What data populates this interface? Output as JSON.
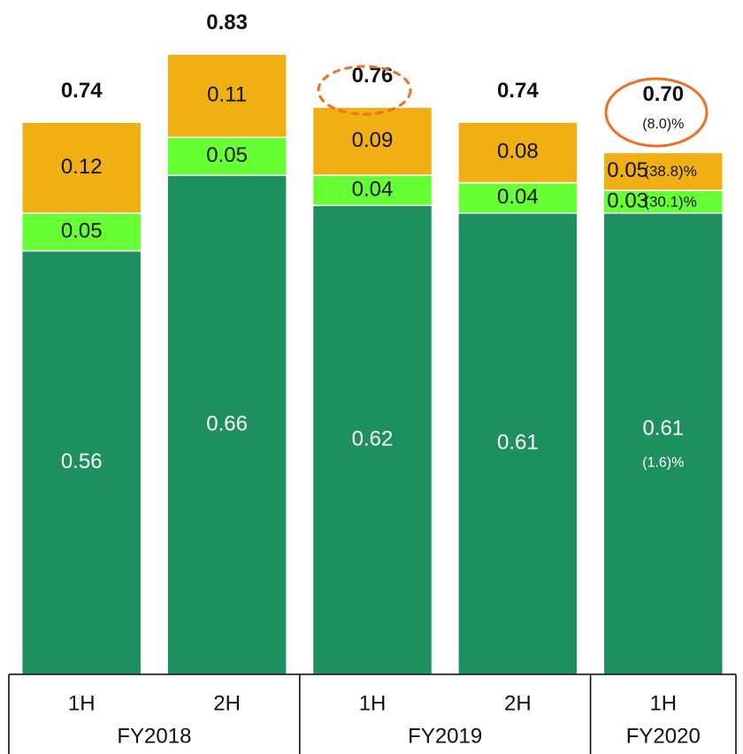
{
  "chart_data": {
    "type": "stacked_bar",
    "groups": [
      {
        "name": "FY2018",
        "categories": [
          "1H",
          "2H"
        ]
      },
      {
        "name": "FY2019",
        "categories": [
          "1H",
          "2H"
        ]
      },
      {
        "name": "FY2020",
        "categories": [
          "1H"
        ]
      }
    ],
    "series": [
      {
        "color": "#1e9060",
        "label_color": "#ffffff",
        "values": [
          0.56,
          0.66,
          0.62,
          0.61,
          0.61
        ],
        "change": "(1.6)%"
      },
      {
        "color": "#66ff33",
        "label_color": "#111111",
        "values": [
          0.05,
          0.05,
          0.04,
          0.04,
          0.03
        ],
        "change": "(30.1)%"
      },
      {
        "color": "#f0b014",
        "label_color": "#111111",
        "values": [
          0.12,
          0.11,
          0.09,
          0.08,
          0.05
        ],
        "change": "(38.8)%"
      }
    ],
    "totals": [
      0.74,
      0.83,
      0.76,
      0.74,
      0.7
    ],
    "totals_labels": [
      "0.74",
      "0.83",
      "0.76",
      "0.74",
      "0.70"
    ],
    "total_change": "(8.0)%",
    "ylim": [
      0,
      0.88
    ]
  }
}
